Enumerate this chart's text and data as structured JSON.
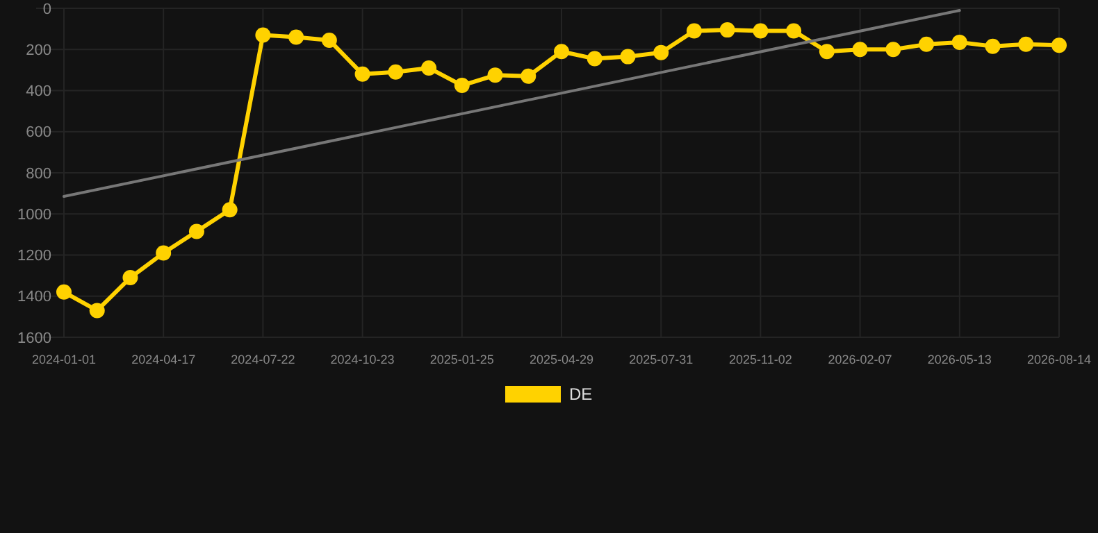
{
  "chart_data": {
    "type": "line",
    "categories": [
      "2024-01-01",
      null,
      null,
      "2024-04-17",
      null,
      null,
      "2024-07-22",
      null,
      null,
      "2024-10-23",
      null,
      null,
      "2025-01-25",
      null,
      null,
      "2025-04-29",
      null,
      null,
      "2025-07-31",
      null,
      null,
      "2025-11-02",
      null,
      null,
      "2026-02-07",
      null,
      null,
      "2026-05-13",
      null,
      null,
      "2026-08-14"
    ],
    "series": [
      {
        "name": "DE",
        "color": "#ffd200",
        "marker": "circle",
        "values": [
          1380,
          1470,
          1310,
          1190,
          1085,
          980,
          130,
          140,
          155,
          320,
          310,
          290,
          375,
          325,
          330,
          210,
          245,
          235,
          215,
          110,
          105,
          110,
          110,
          210,
          200,
          200,
          175,
          165,
          185,
          175,
          180
        ]
      },
      {
        "color": "#777777",
        "marker": "none",
        "values": [
          915,
          null,
          null,
          null,
          null,
          null,
          null,
          null,
          null,
          null,
          null,
          null,
          null,
          null,
          null,
          null,
          null,
          null,
          null,
          null,
          null,
          null,
          null,
          null,
          null,
          null,
          null,
          10,
          null,
          null,
          null
        ]
      }
    ],
    "ylim": [
      1600,
      0
    ],
    "yticks": [
      0,
      200,
      400,
      600,
      800,
      1000,
      1200,
      1400,
      1600
    ],
    "grid": true,
    "legend": "bottom"
  }
}
